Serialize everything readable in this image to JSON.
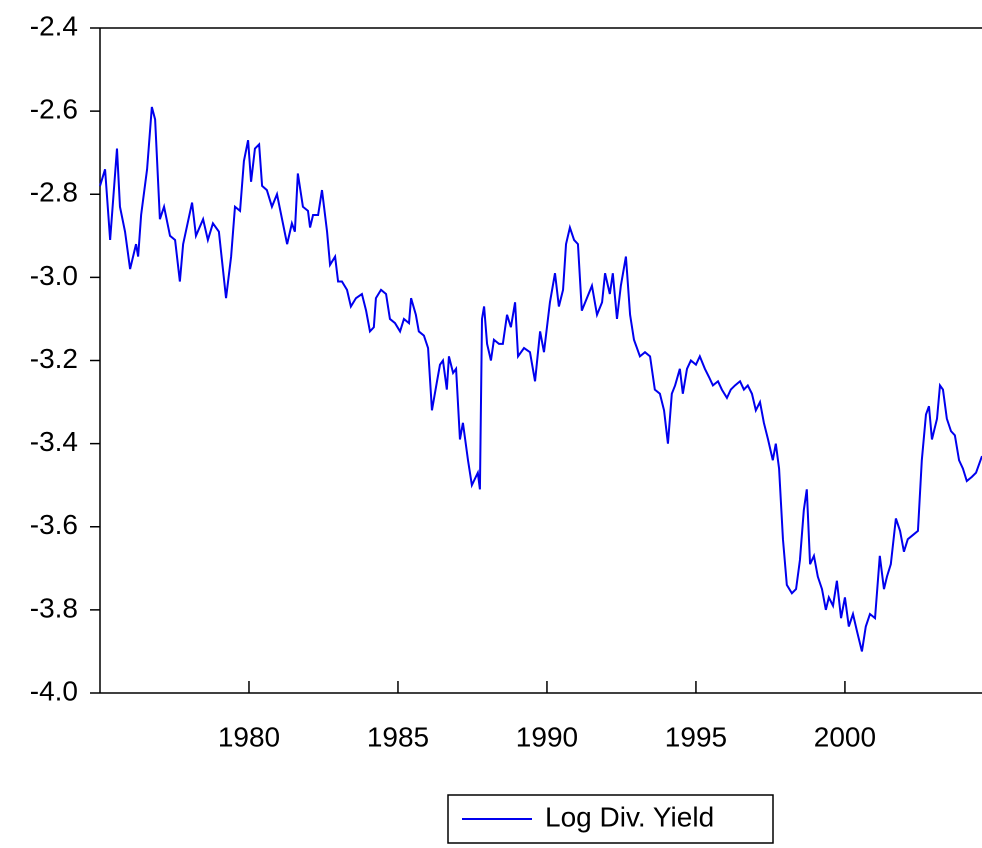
{
  "chart_data": {
    "type": "line",
    "x": [
      1975.0,
      1975.17,
      1975.34,
      1975.57,
      1975.67,
      1975.84,
      1976.01,
      1976.21,
      1976.28,
      1976.38,
      1976.58,
      1976.74,
      1976.85,
      1977.01,
      1977.15,
      1977.35,
      1977.52,
      1977.68,
      1977.79,
      1978.09,
      1978.22,
      1978.46,
      1978.62,
      1978.79,
      1978.99,
      1979.23,
      1979.4,
      1979.53,
      1979.7,
      1979.83,
      1979.97,
      1980.07,
      1980.2,
      1980.34,
      1980.44,
      1980.6,
      1980.77,
      1980.94,
      1981.11,
      1981.28,
      1981.44,
      1981.54,
      1981.64,
      1981.81,
      1981.98,
      1982.05,
      1982.15,
      1982.32,
      1982.45,
      1982.62,
      1982.72,
      1982.89,
      1982.99,
      1983.12,
      1983.29,
      1983.42,
      1983.59,
      1983.79,
      1983.93,
      1984.06,
      1984.19,
      1984.26,
      1984.43,
      1984.6,
      1984.73,
      1984.9,
      1985.07,
      1985.2,
      1985.37,
      1985.44,
      1985.6,
      1985.7,
      1985.87,
      1986.01,
      1986.14,
      1986.31,
      1986.41,
      1986.51,
      1986.64,
      1986.71,
      1986.85,
      1986.95,
      1987.08,
      1987.18,
      1987.35,
      1987.48,
      1987.68,
      1987.75,
      1987.82,
      1987.89,
      1987.99,
      1988.12,
      1988.22,
      1988.39,
      1988.52,
      1988.66,
      1988.79,
      1988.93,
      1989.03,
      1989.23,
      1989.43,
      1989.6,
      1989.77,
      1989.9,
      1990.1,
      1990.27,
      1990.4,
      1990.54,
      1990.64,
      1990.77,
      1990.91,
      1991.04,
      1991.17,
      1991.34,
      1991.51,
      1991.68,
      1991.85,
      1991.95,
      1992.11,
      1992.21,
      1992.35,
      1992.48,
      1992.65,
      1992.79,
      1992.92,
      1993.12,
      1993.29,
      1993.46,
      1993.62,
      1993.79,
      1993.93,
      1994.06,
      1994.19,
      1994.3,
      1994.46,
      1994.56,
      1994.7,
      1994.83,
      1995.0,
      1995.13,
      1995.3,
      1995.44,
      1995.57,
      1995.74,
      1995.87,
      1996.04,
      1996.17,
      1996.31,
      1996.48,
      1996.61,
      1996.74,
      1996.88,
      1997.01,
      1997.15,
      1997.28,
      1997.42,
      1997.58,
      1997.68,
      1997.79,
      1997.92,
      1998.05,
      1998.22,
      1998.36,
      1998.49,
      1998.62,
      1998.72,
      1998.83,
      1998.96,
      1999.09,
      1999.23,
      1999.36,
      1999.46,
      1999.6,
      1999.73,
      1999.87,
      2000.0,
      2000.13,
      2000.27,
      2000.4,
      2000.57,
      2000.7,
      2000.84,
      2001.01,
      2001.17,
      2001.31,
      2001.41,
      2001.54,
      2001.71,
      2001.85,
      2001.98,
      2002.11,
      2002.28,
      2002.45,
      2002.58,
      2002.72,
      2002.82,
      2002.92,
      2003.09,
      2003.19,
      2003.29,
      2003.42,
      2003.56,
      2003.69,
      2003.83,
      2003.96,
      2004.09,
      2004.26,
      2004.4,
      2004.6
    ],
    "series": [
      {
        "name": "Log Div. Yield",
        "color": "#0000ee",
        "values": [
          -2.78,
          -2.74,
          -2.91,
          -2.69,
          -2.83,
          -2.89,
          -2.98,
          -2.92,
          -2.95,
          -2.85,
          -2.74,
          -2.59,
          -2.62,
          -2.86,
          -2.83,
          -2.9,
          -2.91,
          -3.01,
          -2.92,
          -2.82,
          -2.9,
          -2.86,
          -2.91,
          -2.87,
          -2.89,
          -3.05,
          -2.95,
          -2.83,
          -2.84,
          -2.72,
          -2.67,
          -2.77,
          -2.69,
          -2.68,
          -2.78,
          -2.79,
          -2.83,
          -2.8,
          -2.86,
          -2.92,
          -2.87,
          -2.89,
          -2.75,
          -2.83,
          -2.84,
          -2.88,
          -2.85,
          -2.85,
          -2.79,
          -2.89,
          -2.97,
          -2.95,
          -3.01,
          -3.01,
          -3.03,
          -3.07,
          -3.05,
          -3.04,
          -3.08,
          -3.13,
          -3.12,
          -3.05,
          -3.03,
          -3.04,
          -3.1,
          -3.11,
          -3.13,
          -3.1,
          -3.11,
          -3.05,
          -3.09,
          -3.13,
          -3.14,
          -3.17,
          -3.32,
          -3.25,
          -3.21,
          -3.2,
          -3.27,
          -3.19,
          -3.23,
          -3.22,
          -3.39,
          -3.35,
          -3.44,
          -3.5,
          -3.47,
          -3.51,
          -3.1,
          -3.07,
          -3.16,
          -3.2,
          -3.15,
          -3.16,
          -3.16,
          -3.09,
          -3.12,
          -3.06,
          -3.19,
          -3.17,
          -3.18,
          -3.25,
          -3.13,
          -3.18,
          -3.06,
          -2.99,
          -3.07,
          -3.03,
          -2.92,
          -2.88,
          -2.91,
          -2.92,
          -3.08,
          -3.05,
          -3.02,
          -3.09,
          -3.06,
          -2.99,
          -3.04,
          -2.99,
          -3.1,
          -3.02,
          -2.95,
          -3.09,
          -3.15,
          -3.19,
          -3.18,
          -3.19,
          -3.27,
          -3.28,
          -3.32,
          -3.4,
          -3.28,
          -3.26,
          -3.22,
          -3.28,
          -3.22,
          -3.2,
          -3.21,
          -3.19,
          -3.22,
          -3.24,
          -3.26,
          -3.25,
          -3.27,
          -3.29,
          -3.27,
          -3.26,
          -3.25,
          -3.27,
          -3.26,
          -3.28,
          -3.32,
          -3.3,
          -3.35,
          -3.39,
          -3.44,
          -3.4,
          -3.46,
          -3.63,
          -3.74,
          -3.76,
          -3.75,
          -3.68,
          -3.56,
          -3.51,
          -3.69,
          -3.67,
          -3.72,
          -3.75,
          -3.8,
          -3.77,
          -3.79,
          -3.73,
          -3.82,
          -3.77,
          -3.84,
          -3.81,
          -3.85,
          -3.9,
          -3.84,
          -3.81,
          -3.82,
          -3.67,
          -3.75,
          -3.72,
          -3.69,
          -3.58,
          -3.61,
          -3.66,
          -3.63,
          -3.62,
          -3.61,
          -3.44,
          -3.33,
          -3.31,
          -3.39,
          -3.34,
          -3.26,
          -3.27,
          -3.34,
          -3.37,
          -3.38,
          -3.44,
          -3.46,
          -3.49,
          -3.48,
          -3.47,
          -3.43
        ]
      }
    ],
    "xlim": [
      1975,
      2004.6
    ],
    "xticks": [
      1980,
      1985,
      1990,
      1995,
      2000
    ],
    "ylim": [
      -4.0,
      -2.4
    ],
    "yticks": [
      {
        "value": -4.0,
        "label": "-4.0"
      },
      -3.8,
      -3.6,
      -3.4,
      -3.2,
      {
        "value": -3.0,
        "label": "-3.0"
      },
      -2.8,
      -2.6,
      -2.4
    ],
    "legend": "bottom"
  }
}
